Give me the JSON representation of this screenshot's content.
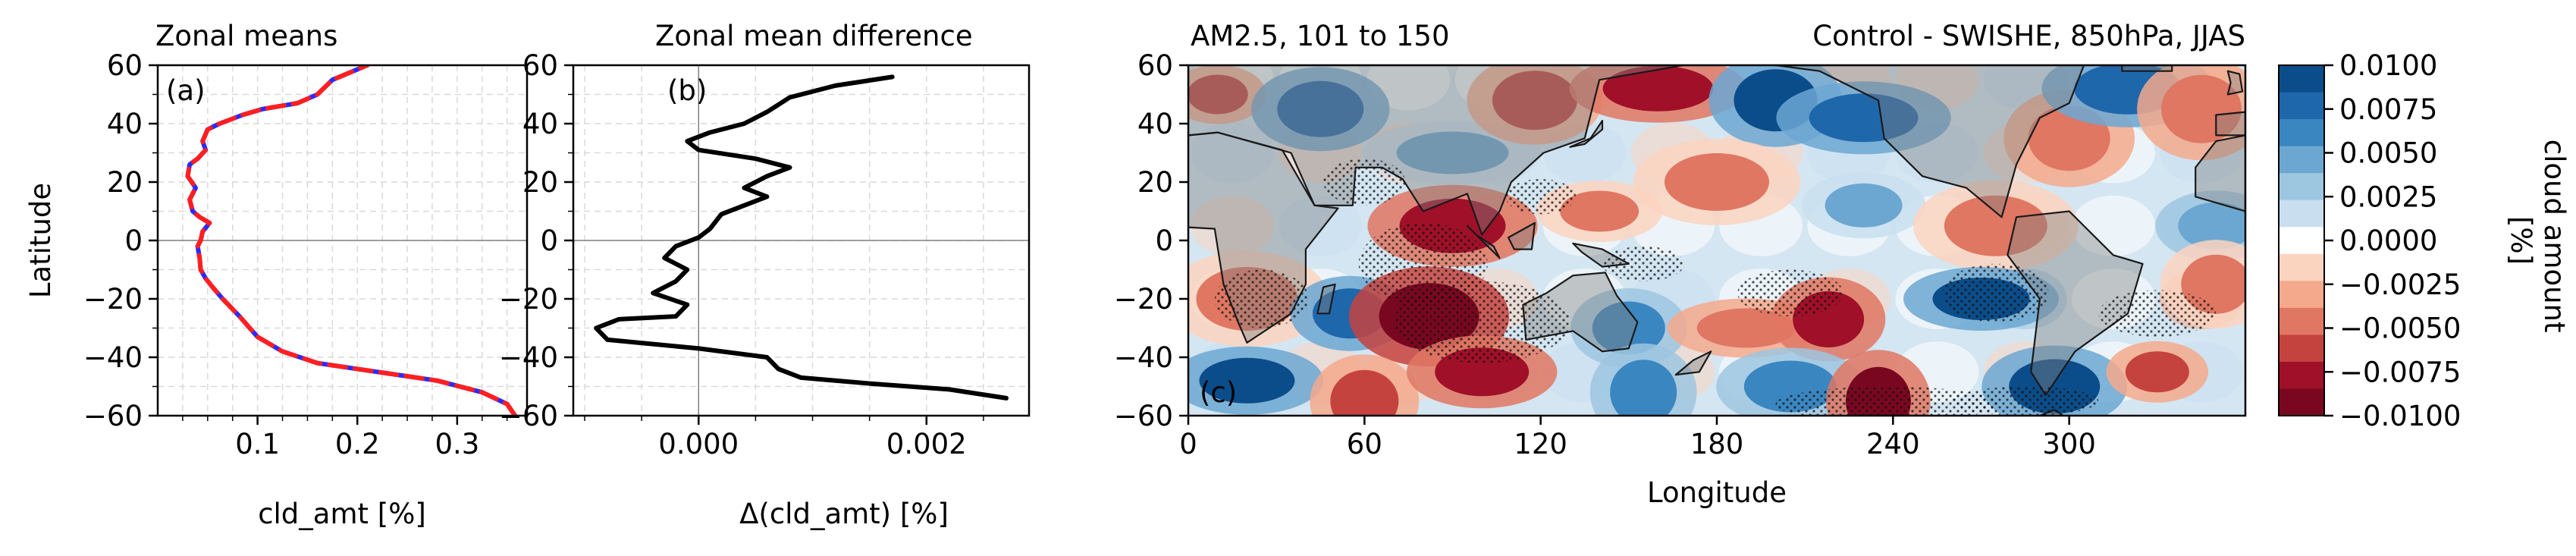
{
  "colors": {
    "series_a_base": "#2a2aff",
    "series_a_overlay": "#ff1f1f",
    "series_b": "#000000",
    "zero_line": "#808080",
    "grid": "#d9d9d9",
    "land_overlay": "#808080"
  },
  "chart_data": [
    {
      "type": "line",
      "panel_label": "(a)",
      "title": "Zonal means",
      "xlabel": "cld_amt [%]",
      "ylabel": "Latitude",
      "xlim": [
        0.0,
        0.37
      ],
      "ylim": [
        -60,
        60
      ],
      "x_ticks": [
        0.1,
        0.2,
        0.3
      ],
      "x_tick_labels": [
        "0.1",
        "0.2",
        "0.3"
      ],
      "y_ticks": [
        -60,
        -40,
        -20,
        0,
        20,
        40,
        60
      ],
      "y_tick_labels": [
        "−60",
        "−40",
        "−20",
        "0",
        "20",
        "40",
        "60"
      ],
      "grid": true,
      "orientation": "x vs latitude",
      "series": [
        {
          "style": "solid",
          "points": [
            [
              0.358,
              -60
            ],
            [
              0.35,
              -56
            ],
            [
              0.325,
              -52
            ],
            [
              0.28,
              -48
            ],
            [
              0.22,
              -45
            ],
            [
              0.16,
              -42
            ],
            [
              0.125,
              -38
            ],
            [
              0.1,
              -33
            ],
            [
              0.082,
              -26
            ],
            [
              0.065,
              -20
            ],
            [
              0.055,
              -16
            ],
            [
              0.048,
              -13
            ],
            [
              0.043,
              -10
            ],
            [
              0.042,
              -6
            ],
            [
              0.04,
              -2
            ],
            [
              0.043,
              0
            ],
            [
              0.045,
              3
            ],
            [
              0.052,
              6
            ],
            [
              0.042,
              8
            ],
            [
              0.035,
              10
            ],
            [
              0.032,
              14
            ],
            [
              0.038,
              18
            ],
            [
              0.03,
              22
            ],
            [
              0.032,
              26
            ],
            [
              0.04,
              28
            ],
            [
              0.048,
              31
            ],
            [
              0.045,
              34
            ],
            [
              0.05,
              38
            ],
            [
              0.062,
              40
            ],
            [
              0.085,
              43
            ],
            [
              0.105,
              45
            ],
            [
              0.14,
              47
            ],
            [
              0.16,
              50
            ],
            [
              0.175,
              55
            ],
            [
              0.21,
              60
            ]
          ]
        },
        {
          "style": "dashed",
          "points": [
            [
              0.358,
              -60
            ],
            [
              0.35,
              -56
            ],
            [
              0.325,
              -52
            ],
            [
              0.28,
              -48
            ],
            [
              0.22,
              -45
            ],
            [
              0.16,
              -42
            ],
            [
              0.125,
              -38
            ],
            [
              0.1,
              -33
            ],
            [
              0.082,
              -26
            ],
            [
              0.065,
              -20
            ],
            [
              0.055,
              -16
            ],
            [
              0.048,
              -13
            ],
            [
              0.043,
              -10
            ],
            [
              0.042,
              -6
            ],
            [
              0.04,
              -2
            ],
            [
              0.043,
              0
            ],
            [
              0.045,
              3
            ],
            [
              0.052,
              6
            ],
            [
              0.042,
              8
            ],
            [
              0.035,
              10
            ],
            [
              0.032,
              14
            ],
            [
              0.038,
              18
            ],
            [
              0.03,
              22
            ],
            [
              0.032,
              26
            ],
            [
              0.04,
              28
            ],
            [
              0.048,
              31
            ],
            [
              0.045,
              34
            ],
            [
              0.05,
              38
            ],
            [
              0.062,
              40
            ],
            [
              0.085,
              43
            ],
            [
              0.105,
              45
            ],
            [
              0.14,
              47
            ],
            [
              0.16,
              50
            ],
            [
              0.175,
              55
            ],
            [
              0.21,
              60
            ]
          ]
        }
      ]
    },
    {
      "type": "line",
      "panel_label": "(b)",
      "title": "Zonal mean difference",
      "xlabel": "Δ(cld_amt) [%]",
      "xlim": [
        -0.0011,
        0.0029
      ],
      "ylim": [
        -60,
        60
      ],
      "x_ticks": [
        0.0,
        0.002
      ],
      "x_tick_labels": [
        "0.000",
        "0.002"
      ],
      "y_ticks": [
        -60,
        -40,
        -20,
        0,
        20,
        40,
        60
      ],
      "y_tick_labels": [
        "−60",
        "−40",
        "−20",
        "0",
        "20",
        "40",
        "60"
      ],
      "grid": true,
      "series": [
        {
          "style": "solid",
          "points": [
            [
              0.0027,
              -54
            ],
            [
              0.0022,
              -51
            ],
            [
              0.0015,
              -49
            ],
            [
              0.0009,
              -47
            ],
            [
              0.0007,
              -44
            ],
            [
              0.0006,
              -40
            ],
            [
              0.0,
              -37
            ],
            [
              -0.0008,
              -34
            ],
            [
              -0.0009,
              -30
            ],
            [
              -0.0007,
              -27
            ],
            [
              -0.0002,
              -26
            ],
            [
              -0.0001,
              -22
            ],
            [
              -0.0004,
              -18
            ],
            [
              -0.0002,
              -14
            ],
            [
              -0.0001,
              -10
            ],
            [
              -0.0003,
              -6
            ],
            [
              -0.0002,
              -2
            ],
            [
              0.0,
              1
            ],
            [
              0.0001,
              4
            ],
            [
              0.0002,
              9
            ],
            [
              0.0004,
              12
            ],
            [
              0.0006,
              15
            ],
            [
              0.0004,
              18
            ],
            [
              0.0006,
              22
            ],
            [
              0.0008,
              25
            ],
            [
              0.0005,
              28
            ],
            [
              0.0,
              31
            ],
            [
              -0.0001,
              34
            ],
            [
              0.0001,
              37
            ],
            [
              0.0004,
              40
            ],
            [
              0.0006,
              44
            ],
            [
              0.0008,
              49
            ],
            [
              0.0012,
              53
            ],
            [
              0.0017,
              56
            ]
          ]
        }
      ]
    },
    {
      "type": "heatmap",
      "panel_label": "(c)",
      "title_left": "AM2.5, 101 to 150",
      "title_right": "Control - SWISHE, 850hPa, JJAS",
      "xlabel": "Longitude",
      "xlim": [
        0,
        360
      ],
      "ylim": [
        -60,
        60
      ],
      "x_ticks": [
        0,
        60,
        120,
        180,
        240,
        300
      ],
      "x_tick_labels": [
        "0",
        "60",
        "120",
        "180",
        "240",
        "300"
      ],
      "y_ticks": [
        -60,
        -40,
        -20,
        0,
        20,
        40,
        60
      ],
      "y_tick_labels": [
        "−60",
        "−40",
        "−20",
        "0",
        "20",
        "40",
        "60"
      ],
      "colorbar": {
        "label": "cloud amount [%]",
        "min": -0.01,
        "max": 0.01,
        "tick_labels": [
          "0.0100",
          "0.0075",
          "0.0050",
          "0.0025",
          "0.0000",
          "−0.0025",
          "−0.0050",
          "−0.0075",
          "−0.0100"
        ],
        "colors": [
          "#0b4d8a",
          "#1f67ab",
          "#3a86c0",
          "#6ca7d2",
          "#9dc6e0",
          "#c9dff0",
          "#ffffff",
          "#fbd4c0",
          "#f4a98c",
          "#e07763",
          "#c5433f",
          "#a01028",
          "#7a0720"
        ]
      },
      "hatching": "stippled regions of significance",
      "land_overlay": "grey translucent continents",
      "anomaly_regions": [
        {
          "lon": 10,
          "lat": 50,
          "value": -0.006
        },
        {
          "lon": 45,
          "lat": 45,
          "value": 0.008
        },
        {
          "lon": 90,
          "lat": 30,
          "value": 0.004
        },
        {
          "lon": 118,
          "lat": 48,
          "value": -0.006
        },
        {
          "lon": 160,
          "lat": 52,
          "value": -0.008
        },
        {
          "lon": 200,
          "lat": 48,
          "value": 0.009
        },
        {
          "lon": 230,
          "lat": 42,
          "value": 0.007
        },
        {
          "lon": 300,
          "lat": 35,
          "value": -0.005
        },
        {
          "lon": 320,
          "lat": 52,
          "value": 0.007
        },
        {
          "lon": 345,
          "lat": 45,
          "value": -0.005
        },
        {
          "lon": 90,
          "lat": 5,
          "value": -0.007
        },
        {
          "lon": 140,
          "lat": 10,
          "value": -0.004
        },
        {
          "lon": 180,
          "lat": 20,
          "value": -0.004
        },
        {
          "lon": 230,
          "lat": 12,
          "value": 0.004
        },
        {
          "lon": 275,
          "lat": 5,
          "value": -0.004
        },
        {
          "lon": 350,
          "lat": 5,
          "value": 0.005
        },
        {
          "lon": 20,
          "lat": -20,
          "value": -0.004
        },
        {
          "lon": 55,
          "lat": -25,
          "value": 0.007
        },
        {
          "lon": 82,
          "lat": -26,
          "value": -0.01
        },
        {
          "lon": 150,
          "lat": -30,
          "value": 0.006
        },
        {
          "lon": 190,
          "lat": -30,
          "value": -0.005
        },
        {
          "lon": 218,
          "lat": -27,
          "value": -0.008
        },
        {
          "lon": 270,
          "lat": -20,
          "value": 0.009
        },
        {
          "lon": 350,
          "lat": -15,
          "value": -0.004
        },
        {
          "lon": 20,
          "lat": -48,
          "value": 0.009
        },
        {
          "lon": 60,
          "lat": -55,
          "value": -0.006
        },
        {
          "lon": 100,
          "lat": -45,
          "value": -0.007
        },
        {
          "lon": 155,
          "lat": -52,
          "value": 0.006
        },
        {
          "lon": 205,
          "lat": -50,
          "value": 0.006
        },
        {
          "lon": 235,
          "lat": -55,
          "value": -0.009
        },
        {
          "lon": 295,
          "lat": -50,
          "value": 0.009
        },
        {
          "lon": 330,
          "lat": -45,
          "value": -0.006
        }
      ]
    }
  ]
}
